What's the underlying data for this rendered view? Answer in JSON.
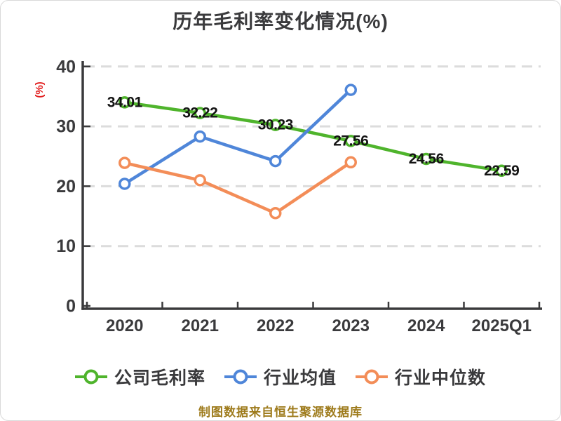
{
  "title": {
    "text": "历年毛利率变化情况(%)",
    "color": "#3a3a3c"
  },
  "footer": {
    "text": "制图数据来自恒生聚源数据库",
    "color": "#9e7b1c"
  },
  "chart_data": {
    "type": "line",
    "title": "历年毛利率变化情况(%)",
    "categories": [
      "2020",
      "2021",
      "2022",
      "2023",
      "2024",
      "2025Q1"
    ],
    "series": [
      {
        "id": "company-gross-margin",
        "name": "公司毛利率",
        "color": "#4fb42c",
        "values": [
          34.01,
          32.22,
          30.23,
          27.56,
          24.56,
          22.59
        ],
        "data_labels": true
      },
      {
        "id": "industry-average",
        "name": "行业均值",
        "color": "#4f86d9",
        "values": [
          20.4,
          28.3,
          24.2,
          36.1,
          null,
          null
        ],
        "data_labels": false
      },
      {
        "id": "industry-median",
        "name": "行业中位数",
        "color": "#f38d58",
        "values": [
          23.9,
          21.0,
          15.5,
          24.0,
          null,
          null
        ],
        "data_labels": false
      }
    ],
    "ylabel": "(%)",
    "ylim": [
      0,
      40
    ],
    "yticks": [
      0,
      10,
      20,
      30,
      40
    ],
    "grid": "horizontal-dashed",
    "legend_position": "bottom"
  },
  "styles": {
    "axis_color": "#3a3a3c",
    "grid_color": "#dcdcdc",
    "tick_label_color": "#3a3a3c",
    "value_label_color": "#141414",
    "marker_fill": "#ffffff",
    "ylabel_color": "#e11d1d"
  }
}
